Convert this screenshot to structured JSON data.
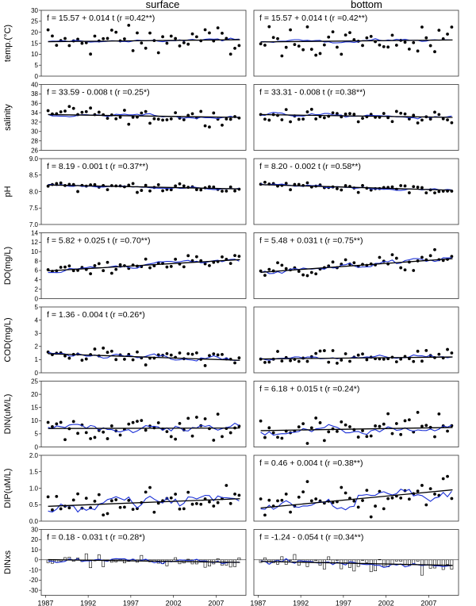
{
  "chart_data": {
    "type": "scatter",
    "column_titles": [
      "surface",
      "bottom"
    ],
    "x_ticks": [
      1987,
      1992,
      1997,
      2002,
      2007
    ],
    "xlim": [
      1986.5,
      2010.5
    ],
    "colors": {
      "points": "#000000",
      "trend": "#000000",
      "smooth": "#1a2fd6",
      "bars": "#ffffff"
    },
    "panels": [
      {
        "ylabel": "temp.(°C)",
        "ylim": [
          0,
          30
        ],
        "yticks": [
          0,
          5,
          10,
          15,
          20,
          25,
          30
        ],
        "equations": [
          "f = 15.57 + 0.014 t (r =0.42**)",
          "f = 15.57 + 0.014 t (r =0.42**)"
        ],
        "trend": [
          [
            15.7,
            16.6
          ],
          [
            15.6,
            16.5
          ]
        ],
        "center": [
          16.3,
          16.1
        ],
        "spread": [
          5.5,
          5.5
        ],
        "noise": [
          1.2,
          0.9
        ],
        "bars": false
      },
      {
        "ylabel": "salinity",
        "ylim": [
          26,
          40
        ],
        "yticks": [
          26,
          28,
          30,
          32,
          34,
          36,
          38,
          40
        ],
        "equations": [
          "f = 33.59 - 0.008 t (r =0.25*)",
          "f = 33.31 - 0.008 t (r =0.38**)"
        ],
        "trend": [
          [
            33.6,
            33.0
          ],
          [
            33.6,
            33.0
          ]
        ],
        "center": [
          33.3,
          33.3
        ],
        "spread": [
          1.3,
          1.2
        ],
        "noise": [
          0.5,
          0.5
        ],
        "bars": false
      },
      {
        "ylabel": "pH",
        "ylim": [
          7.0,
          9.0
        ],
        "yticks": [
          7.0,
          7.5,
          8.0,
          8.5,
          9.0
        ],
        "equations": [
          "f = 8.19 - 0.001 t (r =0.37**)",
          "f = 8.20 - 0.002 t (r =0.58**)"
        ],
        "trend": [
          [
            8.2,
            8.08
          ],
          [
            8.21,
            8.04
          ]
        ],
        "center": [
          8.14,
          8.12
        ],
        "spread": [
          0.12,
          0.12
        ],
        "noise": [
          0.05,
          0.05
        ],
        "bars": false
      },
      {
        "ylabel": "DO(mg/L)",
        "ylim": [
          0,
          14
        ],
        "yticks": [
          0,
          2,
          4,
          6,
          8,
          10,
          12,
          14
        ],
        "equations": [
          "f = 5.82 + 0.025 t (r =0.70**)",
          "f = 5.48 + 0.031 t (r =0.75**)"
        ],
        "trend": [
          [
            5.9,
            8.3
          ],
          [
            5.6,
            8.5
          ]
        ],
        "center": [
          7.0,
          7.0
        ],
        "spread": [
          1.1,
          1.4
        ],
        "noise": [
          0.6,
          0.8
        ],
        "bars": false
      },
      {
        "ylabel": "COD(mg/L)",
        "ylim": [
          0,
          5
        ],
        "yticks": [
          0,
          1,
          2,
          3,
          4,
          5
        ],
        "equations": [
          "f = 1.36 - 0.004 t (r =0.26*)",
          ""
        ],
        "trend": [
          [
            1.45,
            0.95
          ],
          [
            1.05,
            1.2
          ]
        ],
        "center": [
          1.2,
          1.1
        ],
        "spread": [
          0.55,
          0.45
        ],
        "noise": [
          0.3,
          0.2
        ],
        "bars": false
      },
      {
        "ylabel": "DIN(uM/L)",
        "ylim": [
          0,
          25
        ],
        "yticks": [
          0,
          5,
          10,
          15,
          20,
          25
        ],
        "equations": [
          "",
          "f = 6.18 + 0.015 t (r =0.24*)"
        ],
        "trend": [
          [
            7.0,
            7.2
          ],
          [
            6.2,
            7.4
          ]
        ],
        "center": [
          7.0,
          6.8
        ],
        "spread": [
          4.5,
          4.8
        ],
        "noise": [
          2.5,
          2.5
        ],
        "bars": false
      },
      {
        "ylabel": "DIP(uM/L)",
        "ylim": [
          0,
          2.0
        ],
        "yticks": [
          0,
          0.5,
          1.0,
          1.5,
          2.0
        ],
        "equations": [
          "",
          "f = 0.46 + 0.004 t (r =0.38**)"
        ],
        "trend": [
          [
            0.45,
            0.68
          ],
          [
            0.4,
            0.95
          ]
        ],
        "center": [
          0.55,
          0.65
        ],
        "spread": [
          0.35,
          0.45
        ],
        "noise": [
          0.25,
          0.3
        ],
        "bars": false
      },
      {
        "ylabel": "DINxs",
        "ylim": [
          -35,
          30
        ],
        "yticks": [
          -30,
          -20,
          -10,
          0,
          10,
          20,
          30
        ],
        "equations": [
          "f = 0.18 - 0.031 t (r =0.28*)",
          "f = -1.24 - 0.054 t (r =0.34**)"
        ],
        "trend": [
          [
            0.2,
            -2.5
          ],
          [
            -1.5,
            -5.5
          ]
        ],
        "center": [
          -1.0,
          -2.5
        ],
        "spread": [
          5.0,
          7.0
        ],
        "noise": [
          3.0,
          4.0
        ],
        "bars": true
      }
    ]
  }
}
